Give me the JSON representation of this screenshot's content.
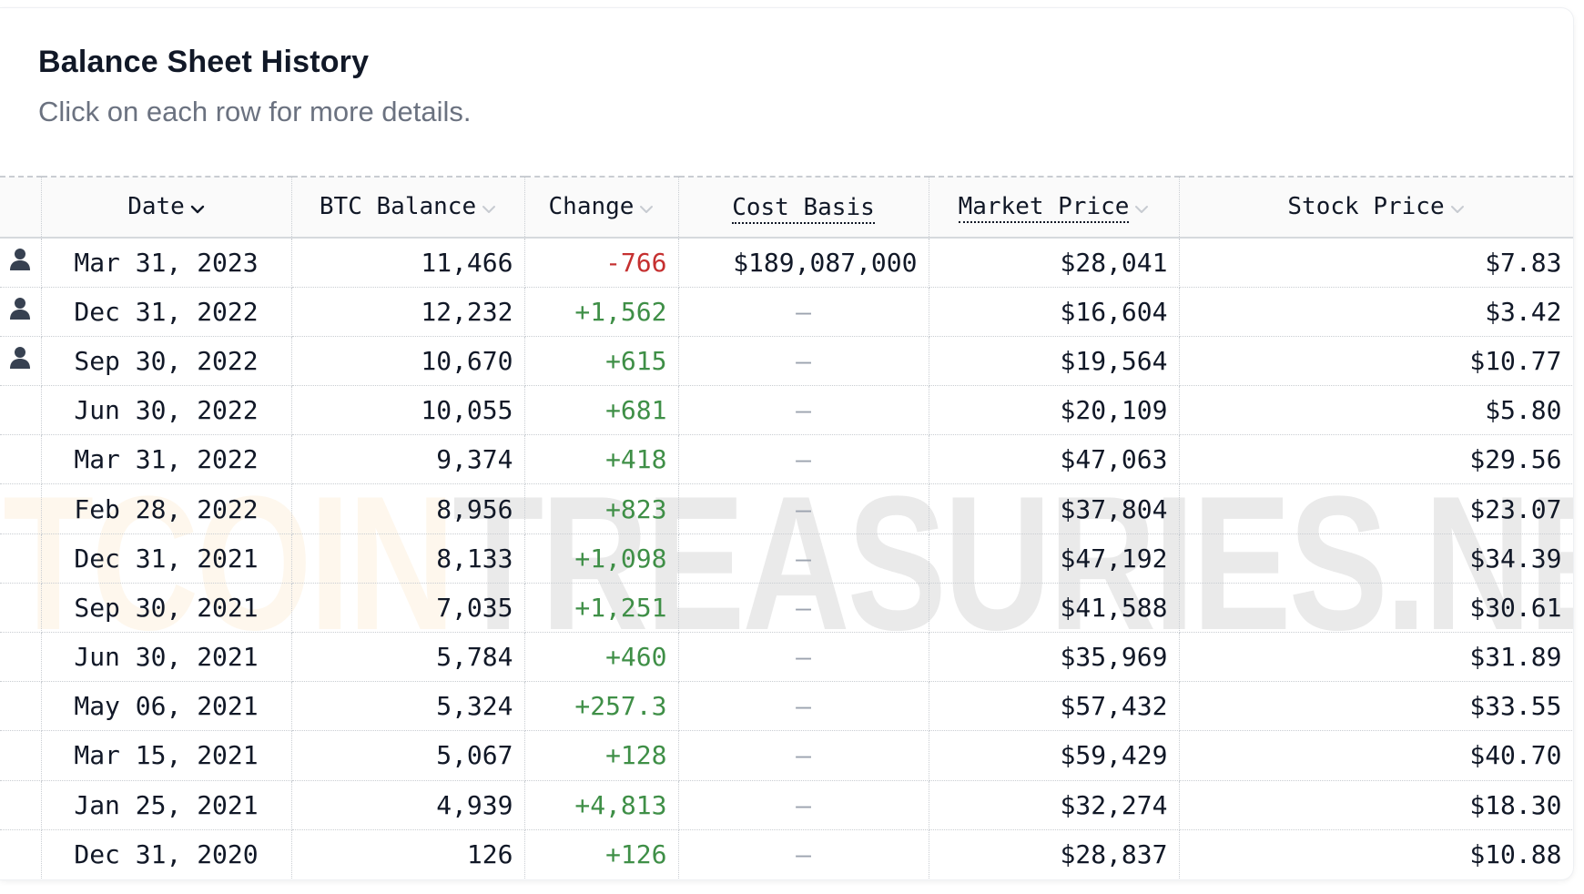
{
  "header": {
    "title": "Balance Sheet History",
    "subtitle": "Click on each row for more details."
  },
  "watermark": {
    "part1": "BITCOIN",
    "part2": "TREASURIES.NET"
  },
  "colors": {
    "negative": "#c53030",
    "positive": "#3f8f47",
    "watermark_orange": "#f7931a"
  },
  "table": {
    "columns": [
      {
        "key": "date",
        "label": "Date",
        "sort": "active-desc",
        "dotted": false
      },
      {
        "key": "btc_balance",
        "label": "BTC Balance",
        "sort": "inactive",
        "dotted": false
      },
      {
        "key": "change",
        "label": "Change",
        "sort": "inactive",
        "dotted": false
      },
      {
        "key": "cost_basis",
        "label": "Cost Basis",
        "sort": "none",
        "dotted": true
      },
      {
        "key": "market_price",
        "label": "Market Price",
        "sort": "inactive",
        "dotted": true
      },
      {
        "key": "stock_price",
        "label": "Stock Price",
        "sort": "inactive",
        "dotted": false
      }
    ],
    "rows": [
      {
        "icon": "user-icon",
        "date": "Mar 31, 2023",
        "btc_balance": "11,466",
        "change": "-766",
        "change_sign": "neg",
        "cost_basis": "$189,087,000",
        "market_price": "$28,041",
        "stock_price": "$7.83"
      },
      {
        "icon": "user-icon",
        "date": "Dec 31, 2022",
        "btc_balance": "12,232",
        "change": "+1,562",
        "change_sign": "pos",
        "cost_basis": "—",
        "market_price": "$16,604",
        "stock_price": "$3.42"
      },
      {
        "icon": "user-icon",
        "date": "Sep 30, 2022",
        "btc_balance": "10,670",
        "change": "+615",
        "change_sign": "pos",
        "cost_basis": "—",
        "market_price": "$19,564",
        "stock_price": "$10.77"
      },
      {
        "icon": "",
        "date": "Jun 30, 2022",
        "btc_balance": "10,055",
        "change": "+681",
        "change_sign": "pos",
        "cost_basis": "—",
        "market_price": "$20,109",
        "stock_price": "$5.80"
      },
      {
        "icon": "",
        "date": "Mar 31, 2022",
        "btc_balance": "9,374",
        "change": "+418",
        "change_sign": "pos",
        "cost_basis": "—",
        "market_price": "$47,063",
        "stock_price": "$29.56"
      },
      {
        "icon": "",
        "date": "Feb 28, 2022",
        "btc_balance": "8,956",
        "change": "+823",
        "change_sign": "pos",
        "cost_basis": "—",
        "market_price": "$37,804",
        "stock_price": "$23.07"
      },
      {
        "icon": "",
        "date": "Dec 31, 2021",
        "btc_balance": "8,133",
        "change": "+1,098",
        "change_sign": "pos",
        "cost_basis": "—",
        "market_price": "$47,192",
        "stock_price": "$34.39"
      },
      {
        "icon": "",
        "date": "Sep 30, 2021",
        "btc_balance": "7,035",
        "change": "+1,251",
        "change_sign": "pos",
        "cost_basis": "—",
        "market_price": "$41,588",
        "stock_price": "$30.61"
      },
      {
        "icon": "",
        "date": "Jun 30, 2021",
        "btc_balance": "5,784",
        "change": "+460",
        "change_sign": "pos",
        "cost_basis": "—",
        "market_price": "$35,969",
        "stock_price": "$31.89"
      },
      {
        "icon": "",
        "date": "May 06, 2021",
        "btc_balance": "5,324",
        "change": "+257.3",
        "change_sign": "pos",
        "cost_basis": "—",
        "market_price": "$57,432",
        "stock_price": "$33.55"
      },
      {
        "icon": "",
        "date": "Mar 15, 2021",
        "btc_balance": "5,067",
        "change": "+128",
        "change_sign": "pos",
        "cost_basis": "—",
        "market_price": "$59,429",
        "stock_price": "$40.70"
      },
      {
        "icon": "",
        "date": "Jan 25, 2021",
        "btc_balance": "4,939",
        "change": "+4,813",
        "change_sign": "pos",
        "cost_basis": "—",
        "market_price": "$32,274",
        "stock_price": "$18.30"
      },
      {
        "icon": "",
        "date": "Dec 31, 2020",
        "btc_balance": "126",
        "change": "+126",
        "change_sign": "pos",
        "cost_basis": "—",
        "market_price": "$28,837",
        "stock_price": "$10.88"
      }
    ]
  }
}
